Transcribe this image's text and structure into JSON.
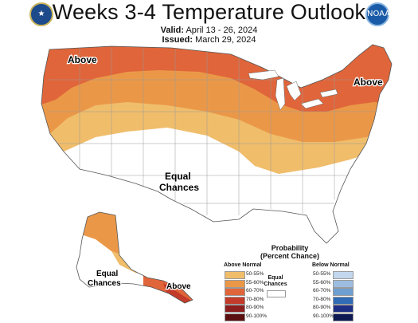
{
  "title": "Weeks 3-4 Temperature Outlook",
  "valid_label": "Valid:",
  "valid_value": "April 13 - 26, 2024",
  "issued_label": "Issued:",
  "issued_value": "March 29, 2024",
  "logo_left": "seal-icon",
  "logo_right": "noaa-icon",
  "logo_right_text": "NOAA",
  "map_labels": {
    "above_west": "Above",
    "above_east": "Above",
    "equal_1": "Equal",
    "equal_2": "Chances",
    "alaska_equal_1": "Equal",
    "alaska_equal_2": "Chances",
    "alaska_above": "Above"
  },
  "legend": {
    "title_1": "Probability",
    "title_2": "(Percent Chance)",
    "above_header": "Above Normal",
    "below_header": "Below Normal",
    "equal_1": "Equal",
    "equal_2": "Chances",
    "above": [
      {
        "label": "50-55%",
        "color": "#f0bd6b"
      },
      {
        "label": "55-60%",
        "color": "#ea9848"
      },
      {
        "label": "60-70%",
        "color": "#e0653a"
      },
      {
        "label": "70-80%",
        "color": "#c33b2a"
      },
      {
        "label": "80-90%",
        "color": "#8c1e1e"
      },
      {
        "label": "90-100%",
        "color": "#5a0f10"
      }
    ],
    "below": [
      {
        "label": "50-55%",
        "color": "#c2d7ec"
      },
      {
        "label": "55-60%",
        "color": "#9cbde0"
      },
      {
        "label": "60-70%",
        "color": "#6e9fd1"
      },
      {
        "label": "70-80%",
        "color": "#2f6cb5"
      },
      {
        "label": "80-90%",
        "color": "#1d2f84"
      },
      {
        "label": "90-100%",
        "color": "#0f1a52"
      }
    ]
  }
}
